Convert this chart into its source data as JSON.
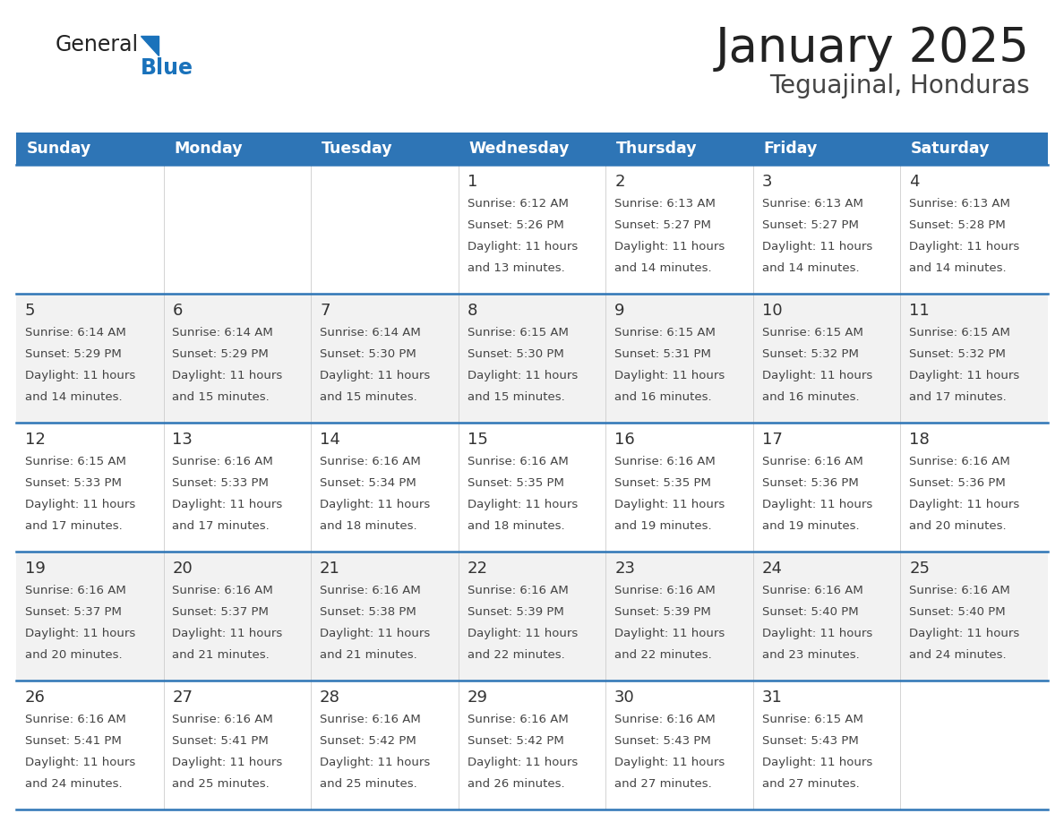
{
  "title": "January 2025",
  "subtitle": "Teguajinal, Honduras",
  "days_of_week": [
    "Sunday",
    "Monday",
    "Tuesday",
    "Wednesday",
    "Thursday",
    "Friday",
    "Saturday"
  ],
  "header_bg": "#2E75B6",
  "header_text": "#FFFFFF",
  "row_bg_odd": "#FFFFFF",
  "row_bg_even": "#F2F2F2",
  "cell_text_color": "#444444",
  "day_num_color": "#333333",
  "divider_color": "#2E75B6",
  "logo_general_color": "#222222",
  "logo_blue_color": "#1A72BB",
  "calendar_data": [
    [
      {
        "day": "",
        "sunrise": "",
        "sunset": "",
        "daylight_h": "",
        "daylight_m": ""
      },
      {
        "day": "",
        "sunrise": "",
        "sunset": "",
        "daylight_h": "",
        "daylight_m": ""
      },
      {
        "day": "",
        "sunrise": "",
        "sunset": "",
        "daylight_h": "",
        "daylight_m": ""
      },
      {
        "day": "1",
        "sunrise": "6:12 AM",
        "sunset": "5:26 PM",
        "daylight_h": "11 hours",
        "daylight_m": "and 13 minutes."
      },
      {
        "day": "2",
        "sunrise": "6:13 AM",
        "sunset": "5:27 PM",
        "daylight_h": "11 hours",
        "daylight_m": "and 14 minutes."
      },
      {
        "day": "3",
        "sunrise": "6:13 AM",
        "sunset": "5:27 PM",
        "daylight_h": "11 hours",
        "daylight_m": "and 14 minutes."
      },
      {
        "day": "4",
        "sunrise": "6:13 AM",
        "sunset": "5:28 PM",
        "daylight_h": "11 hours",
        "daylight_m": "and 14 minutes."
      }
    ],
    [
      {
        "day": "5",
        "sunrise": "6:14 AM",
        "sunset": "5:29 PM",
        "daylight_h": "11 hours",
        "daylight_m": "and 14 minutes."
      },
      {
        "day": "6",
        "sunrise": "6:14 AM",
        "sunset": "5:29 PM",
        "daylight_h": "11 hours",
        "daylight_m": "and 15 minutes."
      },
      {
        "day": "7",
        "sunrise": "6:14 AM",
        "sunset": "5:30 PM",
        "daylight_h": "11 hours",
        "daylight_m": "and 15 minutes."
      },
      {
        "day": "8",
        "sunrise": "6:15 AM",
        "sunset": "5:30 PM",
        "daylight_h": "11 hours",
        "daylight_m": "and 15 minutes."
      },
      {
        "day": "9",
        "sunrise": "6:15 AM",
        "sunset": "5:31 PM",
        "daylight_h": "11 hours",
        "daylight_m": "and 16 minutes."
      },
      {
        "day": "10",
        "sunrise": "6:15 AM",
        "sunset": "5:32 PM",
        "daylight_h": "11 hours",
        "daylight_m": "and 16 minutes."
      },
      {
        "day": "11",
        "sunrise": "6:15 AM",
        "sunset": "5:32 PM",
        "daylight_h": "11 hours",
        "daylight_m": "and 17 minutes."
      }
    ],
    [
      {
        "day": "12",
        "sunrise": "6:15 AM",
        "sunset": "5:33 PM",
        "daylight_h": "11 hours",
        "daylight_m": "and 17 minutes."
      },
      {
        "day": "13",
        "sunrise": "6:16 AM",
        "sunset": "5:33 PM",
        "daylight_h": "11 hours",
        "daylight_m": "and 17 minutes."
      },
      {
        "day": "14",
        "sunrise": "6:16 AM",
        "sunset": "5:34 PM",
        "daylight_h": "11 hours",
        "daylight_m": "and 18 minutes."
      },
      {
        "day": "15",
        "sunrise": "6:16 AM",
        "sunset": "5:35 PM",
        "daylight_h": "11 hours",
        "daylight_m": "and 18 minutes."
      },
      {
        "day": "16",
        "sunrise": "6:16 AM",
        "sunset": "5:35 PM",
        "daylight_h": "11 hours",
        "daylight_m": "and 19 minutes."
      },
      {
        "day": "17",
        "sunrise": "6:16 AM",
        "sunset": "5:36 PM",
        "daylight_h": "11 hours",
        "daylight_m": "and 19 minutes."
      },
      {
        "day": "18",
        "sunrise": "6:16 AM",
        "sunset": "5:36 PM",
        "daylight_h": "11 hours",
        "daylight_m": "and 20 minutes."
      }
    ],
    [
      {
        "day": "19",
        "sunrise": "6:16 AM",
        "sunset": "5:37 PM",
        "daylight_h": "11 hours",
        "daylight_m": "and 20 minutes."
      },
      {
        "day": "20",
        "sunrise": "6:16 AM",
        "sunset": "5:37 PM",
        "daylight_h": "11 hours",
        "daylight_m": "and 21 minutes."
      },
      {
        "day": "21",
        "sunrise": "6:16 AM",
        "sunset": "5:38 PM",
        "daylight_h": "11 hours",
        "daylight_m": "and 21 minutes."
      },
      {
        "day": "22",
        "sunrise": "6:16 AM",
        "sunset": "5:39 PM",
        "daylight_h": "11 hours",
        "daylight_m": "and 22 minutes."
      },
      {
        "day": "23",
        "sunrise": "6:16 AM",
        "sunset": "5:39 PM",
        "daylight_h": "11 hours",
        "daylight_m": "and 22 minutes."
      },
      {
        "day": "24",
        "sunrise": "6:16 AM",
        "sunset": "5:40 PM",
        "daylight_h": "11 hours",
        "daylight_m": "and 23 minutes."
      },
      {
        "day": "25",
        "sunrise": "6:16 AM",
        "sunset": "5:40 PM",
        "daylight_h": "11 hours",
        "daylight_m": "and 24 minutes."
      }
    ],
    [
      {
        "day": "26",
        "sunrise": "6:16 AM",
        "sunset": "5:41 PM",
        "daylight_h": "11 hours",
        "daylight_m": "and 24 minutes."
      },
      {
        "day": "27",
        "sunrise": "6:16 AM",
        "sunset": "5:41 PM",
        "daylight_h": "11 hours",
        "daylight_m": "and 25 minutes."
      },
      {
        "day": "28",
        "sunrise": "6:16 AM",
        "sunset": "5:42 PM",
        "daylight_h": "11 hours",
        "daylight_m": "and 25 minutes."
      },
      {
        "day": "29",
        "sunrise": "6:16 AM",
        "sunset": "5:42 PM",
        "daylight_h": "11 hours",
        "daylight_m": "and 26 minutes."
      },
      {
        "day": "30",
        "sunrise": "6:16 AM",
        "sunset": "5:43 PM",
        "daylight_h": "11 hours",
        "daylight_m": "and 27 minutes."
      },
      {
        "day": "31",
        "sunrise": "6:15 AM",
        "sunset": "5:43 PM",
        "daylight_h": "11 hours",
        "daylight_m": "and 27 minutes."
      },
      {
        "day": "",
        "sunrise": "",
        "sunset": "",
        "daylight_h": "",
        "daylight_m": ""
      }
    ]
  ]
}
